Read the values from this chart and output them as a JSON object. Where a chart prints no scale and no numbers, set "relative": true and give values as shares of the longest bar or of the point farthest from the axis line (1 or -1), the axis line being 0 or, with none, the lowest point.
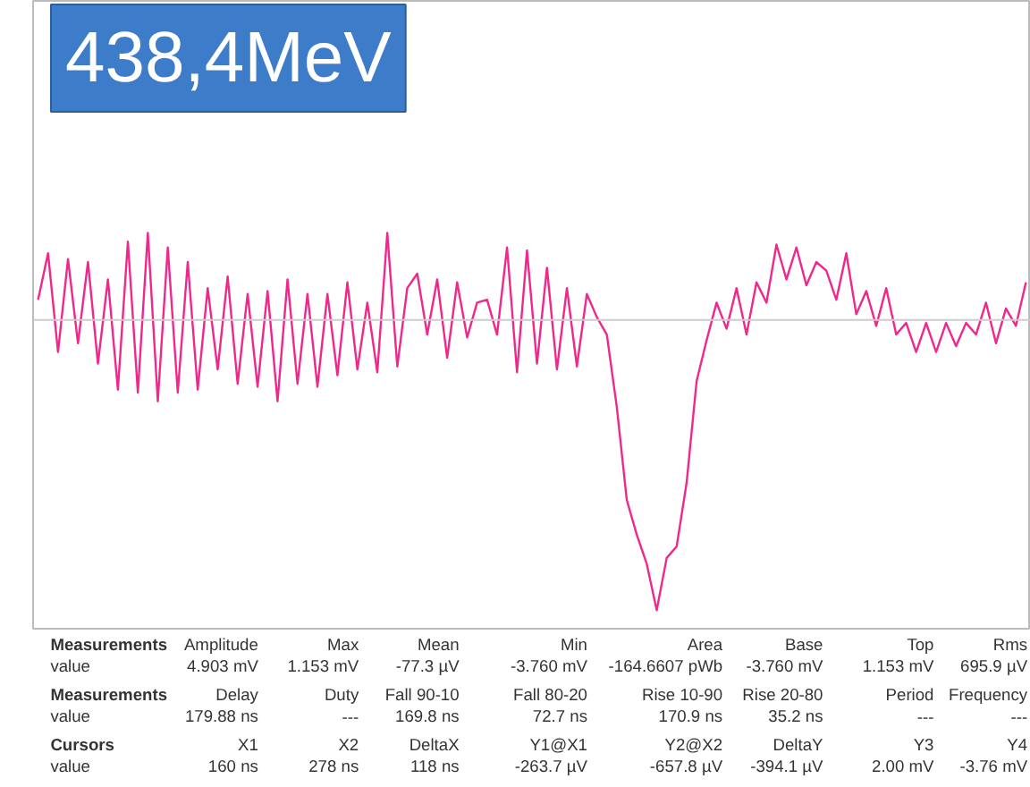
{
  "chart_data": {
    "type": "line",
    "title": "438,4MeV",
    "relative": true,
    "categories": [
      null,
      null,
      null,
      null,
      null,
      null,
      null,
      null,
      null,
      null,
      null,
      null,
      null,
      null,
      null,
      null,
      null,
      null,
      null,
      null,
      null,
      null,
      null,
      null,
      null,
      null,
      null,
      null,
      null,
      null,
      null,
      null,
      null,
      null,
      null,
      null,
      null,
      null,
      null,
      null,
      null,
      null,
      null,
      null,
      null,
      null,
      null,
      null,
      null,
      null,
      null,
      null,
      null,
      null,
      null,
      null,
      null,
      null,
      null,
      null,
      null,
      null,
      null,
      null,
      null,
      null,
      null,
      null,
      null,
      null,
      null,
      null,
      null,
      null,
      null,
      null,
      null,
      null,
      null,
      null,
      null,
      null,
      null,
      null,
      null,
      null,
      null,
      null,
      null,
      null,
      null,
      null,
      null,
      null,
      null,
      null,
      null,
      null,
      null,
      null
    ],
    "series": [
      {
        "color": "#f0288c",
        "values": [
          0.07,
          0.23,
          -0.11,
          0.21,
          -0.08,
          0.2,
          -0.15,
          0.14,
          -0.24,
          0.27,
          -0.25,
          0.3,
          -0.28,
          0.25,
          -0.25,
          0.2,
          -0.24,
          0.11,
          -0.17,
          0.15,
          -0.22,
          0.09,
          -0.23,
          0.1,
          -0.28,
          0.14,
          -0.22,
          0.09,
          -0.23,
          0.09,
          -0.19,
          0.13,
          -0.17,
          0.06,
          -0.18,
          0.3,
          -0.16,
          0.11,
          0.16,
          -0.05,
          0.14,
          -0.13,
          0.13,
          -0.06,
          0.06,
          0.07,
          -0.05,
          0.25,
          -0.18,
          0.24,
          -0.15,
          0.18,
          -0.17,
          0.11,
          -0.16,
          0.09,
          0.01,
          -0.05,
          -0.3,
          -0.62,
          -0.74,
          -0.84,
          -1,
          -0.82,
          -0.78,
          -0.56,
          -0.21,
          -0.07,
          0.06,
          -0.03,
          0.11,
          -0.05,
          0.13,
          0.06,
          0.26,
          0.14,
          0.25,
          0.12,
          0.2,
          0.17,
          0.07,
          0.23,
          0.02,
          0.1,
          -0.02,
          0.11,
          -0.05,
          -0.01,
          -0.11,
          -0.01,
          -0.11,
          -0.01,
          -0.09,
          -0.01,
          -0.05,
          0.06,
          -0.08,
          0.04,
          -0.02,
          0.13
        ]
      }
    ],
    "line_style": "solid",
    "annotations": [
      "Measurements",
      "Amplitude",
      "Max",
      "Mean",
      "Min",
      "Area",
      "Base",
      "Top",
      "Rms",
      "value",
      "4.903 mV",
      "1.153 mV",
      "-77.3 µV",
      "-3.760 mV",
      "-164.6607 pWb",
      "-3.760 mV",
      "1.153 mV",
      "695.9 µV",
      "Measurements",
      "Delay",
      "Duty",
      "Fall 90-10",
      "Fall 80-20",
      "Rise 10-90",
      "Rise 20-80",
      "Period",
      "Frequency",
      "value",
      "179.88 ns",
      "---",
      "169.8 ns",
      "72.7 ns",
      "170.9 ns",
      "35.2 ns",
      "---",
      "---",
      "Cursors",
      "X1",
      "X2",
      "DeltaX",
      "Y1@X1",
      "Y2@X2",
      "DeltaY",
      "Y3",
      "Y4",
      "value",
      "160 ns",
      "278 ns",
      "118 ns",
      "-263.7 µV",
      "-657.8 µV",
      "-394.1 µV",
      "2.00 mV",
      "-3.76 mV"
    ]
  }
}
